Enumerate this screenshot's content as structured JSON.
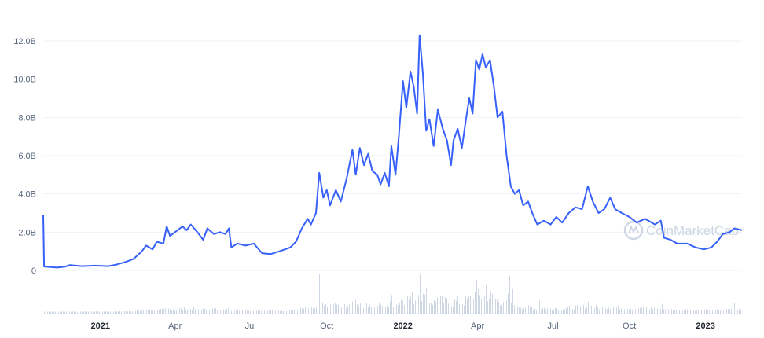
{
  "chart_data": {
    "type": "line",
    "title": "",
    "xlabel": "",
    "ylabel": "",
    "ylim": [
      0,
      12000000000
    ],
    "grid": true,
    "colors": {
      "line": "#3861fb",
      "volume": "#cfd6e4",
      "grid": "#eff2f5",
      "text": "#58667e"
    },
    "y_ticks": [
      {
        "value": 0,
        "label": "0"
      },
      {
        "value": 2000000000,
        "label": "2.0B"
      },
      {
        "value": 4000000000,
        "label": "4.0B"
      },
      {
        "value": 6000000000,
        "label": "6.0B"
      },
      {
        "value": 8000000000,
        "label": "8.0B"
      },
      {
        "value": 10000000000,
        "label": "10.0B"
      },
      {
        "value": 12000000000,
        "label": "12.0B"
      }
    ],
    "x_ticks": [
      {
        "date": "2021-01-01",
        "label": "2021",
        "year": true
      },
      {
        "date": "2021-04-01",
        "label": "Apr",
        "year": false
      },
      {
        "date": "2021-07-01",
        "label": "Jul",
        "year": false
      },
      {
        "date": "2021-10-01",
        "label": "Oct",
        "year": false
      },
      {
        "date": "2022-01-01",
        "label": "2022",
        "year": true
      },
      {
        "date": "2022-04-01",
        "label": "Apr",
        "year": false
      },
      {
        "date": "2022-07-01",
        "label": "Jul",
        "year": false
      },
      {
        "date": "2022-10-01",
        "label": "Oct",
        "year": false
      },
      {
        "date": "2023-01-01",
        "label": "2023",
        "year": true
      }
    ],
    "x_range": [
      "2020-10-24",
      "2023-02-14"
    ],
    "series": [
      {
        "points": [
          [
            "2020-10-24",
            2.9
          ],
          [
            "2020-10-25",
            0.2
          ],
          [
            "2020-11-10",
            0.15
          ],
          [
            "2020-11-20",
            0.2
          ],
          [
            "2020-11-25",
            0.28
          ],
          [
            "2020-12-10",
            0.22
          ],
          [
            "2020-12-25",
            0.25
          ],
          [
            "2021-01-10",
            0.22
          ],
          [
            "2021-01-20",
            0.3
          ],
          [
            "2021-02-01",
            0.45
          ],
          [
            "2021-02-10",
            0.6
          ],
          [
            "2021-02-20",
            1.0
          ],
          [
            "2021-02-25",
            1.3
          ],
          [
            "2021-03-05",
            1.1
          ],
          [
            "2021-03-10",
            1.5
          ],
          [
            "2021-03-18",
            1.4
          ],
          [
            "2021-03-22",
            2.3
          ],
          [
            "2021-03-26",
            1.8
          ],
          [
            "2021-04-01",
            2.0
          ],
          [
            "2021-04-10",
            2.3
          ],
          [
            "2021-04-15",
            2.1
          ],
          [
            "2021-04-20",
            2.4
          ],
          [
            "2021-04-28",
            2.0
          ],
          [
            "2021-05-05",
            1.6
          ],
          [
            "2021-05-10",
            2.2
          ],
          [
            "2021-05-18",
            1.9
          ],
          [
            "2021-05-25",
            2.0
          ],
          [
            "2021-06-01",
            1.9
          ],
          [
            "2021-06-05",
            2.2
          ],
          [
            "2021-06-08",
            1.2
          ],
          [
            "2021-06-15",
            1.4
          ],
          [
            "2021-06-25",
            1.3
          ],
          [
            "2021-07-05",
            1.4
          ],
          [
            "2021-07-15",
            0.9
          ],
          [
            "2021-07-25",
            0.85
          ],
          [
            "2021-08-05",
            1.0
          ],
          [
            "2021-08-18",
            1.2
          ],
          [
            "2021-08-25",
            1.5
          ],
          [
            "2021-09-01",
            2.2
          ],
          [
            "2021-09-08",
            2.7
          ],
          [
            "2021-09-12",
            2.4
          ],
          [
            "2021-09-18",
            3.0
          ],
          [
            "2021-09-22",
            5.1
          ],
          [
            "2021-09-27",
            3.8
          ],
          [
            "2021-10-01",
            4.2
          ],
          [
            "2021-10-05",
            3.4
          ],
          [
            "2021-10-12",
            4.2
          ],
          [
            "2021-10-18",
            3.6
          ],
          [
            "2021-10-25",
            4.8
          ],
          [
            "2021-11-01",
            6.3
          ],
          [
            "2021-11-05",
            5.0
          ],
          [
            "2021-11-10",
            6.4
          ],
          [
            "2021-11-15",
            5.5
          ],
          [
            "2021-11-20",
            6.1
          ],
          [
            "2021-11-25",
            5.2
          ],
          [
            "2021-12-01",
            5.0
          ],
          [
            "2021-12-05",
            4.5
          ],
          [
            "2021-12-10",
            5.1
          ],
          [
            "2021-12-15",
            4.4
          ],
          [
            "2021-12-18",
            6.5
          ],
          [
            "2021-12-23",
            5.0
          ],
          [
            "2021-12-27",
            7.0
          ],
          [
            "2022-01-01",
            9.9
          ],
          [
            "2022-01-05",
            8.5
          ],
          [
            "2022-01-10",
            10.4
          ],
          [
            "2022-01-14",
            9.6
          ],
          [
            "2022-01-18",
            8.2
          ],
          [
            "2022-01-21",
            12.3
          ],
          [
            "2022-01-25",
            10.3
          ],
          [
            "2022-01-29",
            7.3
          ],
          [
            "2022-02-02",
            7.9
          ],
          [
            "2022-02-07",
            6.5
          ],
          [
            "2022-02-12",
            8.4
          ],
          [
            "2022-02-18",
            7.4
          ],
          [
            "2022-02-23",
            6.8
          ],
          [
            "2022-02-28",
            5.5
          ],
          [
            "2022-03-03",
            6.8
          ],
          [
            "2022-03-08",
            7.4
          ],
          [
            "2022-03-13",
            6.4
          ],
          [
            "2022-03-18",
            7.9
          ],
          [
            "2022-03-22",
            9.0
          ],
          [
            "2022-03-26",
            8.2
          ],
          [
            "2022-03-30",
            11.0
          ],
          [
            "2022-04-03",
            10.5
          ],
          [
            "2022-04-07",
            11.3
          ],
          [
            "2022-04-11",
            10.6
          ],
          [
            "2022-04-16",
            11.0
          ],
          [
            "2022-04-21",
            9.5
          ],
          [
            "2022-04-25",
            8.0
          ],
          [
            "2022-05-01",
            8.3
          ],
          [
            "2022-05-06",
            6.0
          ],
          [
            "2022-05-11",
            4.4
          ],
          [
            "2022-05-16",
            4.0
          ],
          [
            "2022-05-21",
            4.2
          ],
          [
            "2022-05-26",
            3.4
          ],
          [
            "2022-06-01",
            3.6
          ],
          [
            "2022-06-06",
            3.0
          ],
          [
            "2022-06-12",
            2.4
          ],
          [
            "2022-06-20",
            2.6
          ],
          [
            "2022-06-28",
            2.4
          ],
          [
            "2022-07-05",
            2.8
          ],
          [
            "2022-07-12",
            2.5
          ],
          [
            "2022-07-20",
            3.0
          ],
          [
            "2022-07-28",
            3.3
          ],
          [
            "2022-08-05",
            3.2
          ],
          [
            "2022-08-12",
            4.4
          ],
          [
            "2022-08-18",
            3.6
          ],
          [
            "2022-08-25",
            3.0
          ],
          [
            "2022-09-01",
            3.2
          ],
          [
            "2022-09-08",
            3.8
          ],
          [
            "2022-09-14",
            3.2
          ],
          [
            "2022-09-22",
            3.0
          ],
          [
            "2022-10-01",
            2.8
          ],
          [
            "2022-10-10",
            2.5
          ],
          [
            "2022-10-20",
            2.7
          ],
          [
            "2022-11-01",
            2.4
          ],
          [
            "2022-11-08",
            2.6
          ],
          [
            "2022-11-12",
            1.7
          ],
          [
            "2022-11-20",
            1.6
          ],
          [
            "2022-11-28",
            1.4
          ],
          [
            "2022-12-10",
            1.4
          ],
          [
            "2022-12-20",
            1.2
          ],
          [
            "2022-12-30",
            1.1
          ],
          [
            "2023-01-08",
            1.2
          ],
          [
            "2023-01-15",
            1.5
          ],
          [
            "2023-01-22",
            1.9
          ],
          [
            "2023-01-30",
            2.0
          ],
          [
            "2023-02-05",
            2.2
          ],
          [
            "2023-02-14",
            2.1
          ]
        ]
      }
    ],
    "volume_peaks": [
      [
        "2021-09-22",
        1.0
      ],
      [
        "2021-10-10",
        0.35
      ],
      [
        "2021-11-05",
        0.4
      ],
      [
        "2021-11-25",
        0.3
      ],
      [
        "2021-12-18",
        0.45
      ],
      [
        "2022-01-21",
        1.0
      ],
      [
        "2022-01-29",
        0.65
      ],
      [
        "2022-02-12",
        0.55
      ],
      [
        "2022-03-22",
        0.6
      ],
      [
        "2022-03-30",
        0.95
      ],
      [
        "2022-04-11",
        0.7
      ],
      [
        "2022-05-09",
        1.0
      ],
      [
        "2022-05-13",
        0.6
      ],
      [
        "2022-06-14",
        0.35
      ],
      [
        "2022-08-12",
        0.3
      ],
      [
        "2022-11-09",
        0.25
      ],
      [
        "2023-02-05",
        0.3
      ]
    ],
    "watermark": "CoinMarketCap"
  }
}
